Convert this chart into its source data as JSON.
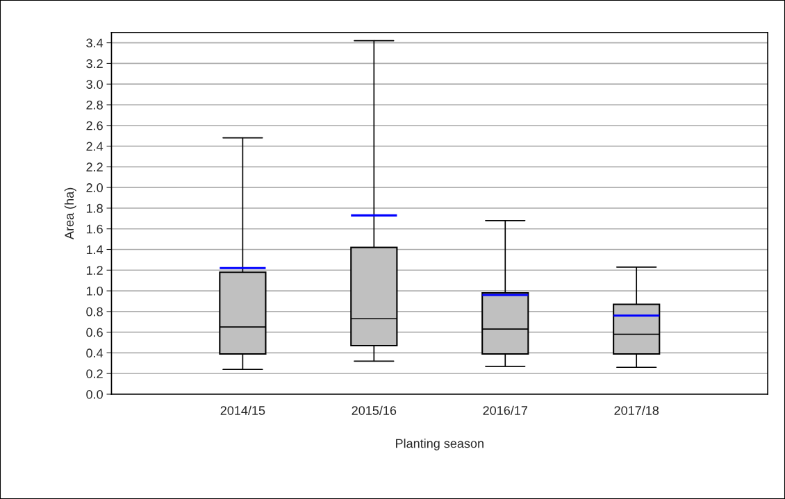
{
  "chart_data": {
    "type": "box",
    "xlabel": "Planting season",
    "ylabel": "Area (ha)",
    "categories": [
      "2014/15",
      "2015/16",
      "2016/17",
      "2017/18"
    ],
    "series": [
      {
        "color": "#c0c0c0",
        "boxes": [
          {
            "low": 0.24,
            "q1": 0.39,
            "median": 0.65,
            "q3": 1.18,
            "high": 2.48,
            "mean": 1.22
          },
          {
            "low": 0.32,
            "q1": 0.47,
            "median": 0.73,
            "q3": 1.42,
            "high": 3.42,
            "mean": 1.73
          },
          {
            "low": 0.27,
            "q1": 0.39,
            "median": 0.63,
            "q3": 0.98,
            "high": 1.68,
            "mean": 0.96
          },
          {
            "low": 0.26,
            "q1": 0.39,
            "median": 0.58,
            "q3": 0.87,
            "high": 1.23,
            "mean": 0.76
          }
        ]
      }
    ],
    "ylim": [
      0,
      3.5
    ],
    "yticks": [
      {
        "value": 0,
        "label": "0.0"
      },
      0.2,
      0.4,
      0.6,
      0.8,
      {
        "value": 1,
        "label": "1.0"
      },
      1.2,
      1.4,
      1.6,
      1.8,
      {
        "value": 2,
        "label": "2.0"
      },
      2.2,
      2.4,
      2.6,
      2.8,
      {
        "value": 3,
        "label": "3.0"
      },
      3.2,
      3.4
    ],
    "grid": "y"
  }
}
